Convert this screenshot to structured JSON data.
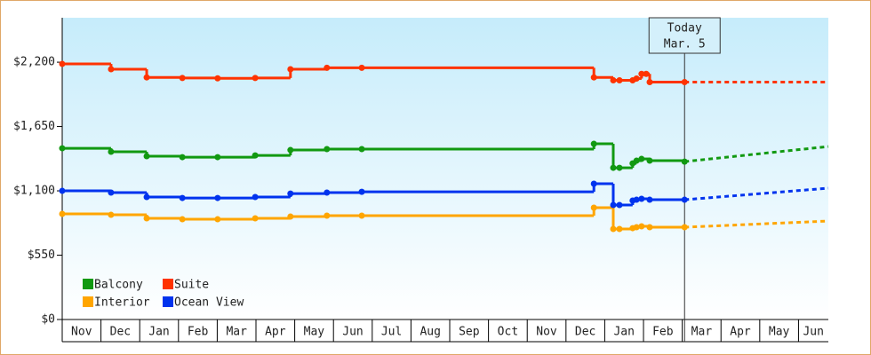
{
  "chart_data": {
    "type": "line",
    "categories": [
      "Nov",
      "Dec",
      "Jan",
      "Feb",
      "Mar",
      "Apr",
      "May",
      "Jun",
      "Jul",
      "Aug",
      "Sep",
      "Oct",
      "Nov",
      "Dec",
      "Jan",
      "Feb",
      "Mar",
      "Apr",
      "May",
      "Jun"
    ],
    "xlim": [
      0,
      19.77
    ],
    "ylim": [
      0,
      2580
    ],
    "yticks": [
      {
        "value": 0,
        "label": "$0"
      },
      {
        "value": 550,
        "label": "$550"
      },
      {
        "value": 1100,
        "label": "$1,100"
      },
      {
        "value": 1650,
        "label": "$1,650"
      },
      {
        "value": 2200,
        "label": "$2,200"
      }
    ],
    "today": {
      "x": 16.06,
      "label": [
        "Today",
        "Mar. 5"
      ]
    },
    "legend": "lower-left",
    "series": [
      {
        "name": "Balcony",
        "color": "#119911",
        "x": [
          0,
          1.26,
          2.18,
          3.1,
          4.01,
          4.98,
          5.89,
          6.83,
          7.73,
          13.72,
          14.22,
          14.38,
          14.72,
          14.82,
          14.95,
          15.16,
          16.06
        ],
        "values": [
          1464,
          1434,
          1396,
          1388,
          1388,
          1403,
          1449,
          1457,
          1457,
          1502,
          1297,
          1297,
          1335,
          1358,
          1373,
          1358,
          1350
        ],
        "forecast": {
          "x": [
            16.06,
            19.77
          ],
          "values": [
            1350,
            1479
          ]
        }
      },
      {
        "name": "Suite",
        "color": "#ff3300",
        "x": [
          0,
          1.26,
          2.18,
          3.1,
          4.01,
          4.98,
          5.89,
          6.83,
          7.73,
          13.72,
          14.22,
          14.38,
          14.72,
          14.82,
          14.95,
          15.07,
          15.16,
          16.06
        ],
        "values": [
          2185,
          2140,
          2070,
          2065,
          2062,
          2065,
          2140,
          2152,
          2152,
          2070,
          2045,
          2045,
          2045,
          2060,
          2100,
          2100,
          2030,
          2030
        ],
        "forecast": {
          "x": [
            16.06,
            19.77
          ],
          "values": [
            2030,
            2030
          ]
        }
      },
      {
        "name": "Interior",
        "color": "#ffa500",
        "x": [
          0,
          1.26,
          2.18,
          3.1,
          4.01,
          4.98,
          5.89,
          6.83,
          7.73,
          13.72,
          14.22,
          14.38,
          14.72,
          14.82,
          14.95,
          15.16,
          16.06
        ],
        "values": [
          903,
          895,
          865,
          857,
          857,
          865,
          880,
          888,
          888,
          956,
          774,
          774,
          781,
          789,
          797,
          789,
          789
        ],
        "forecast": {
          "x": [
            16.06,
            19.77
          ],
          "values": [
            789,
            842
          ]
        }
      },
      {
        "name": "Ocean View",
        "color": "#0033ee",
        "x": [
          0,
          1.26,
          2.18,
          3.1,
          4.01,
          4.98,
          5.89,
          6.83,
          7.73,
          13.72,
          14.22,
          14.38,
          14.72,
          14.82,
          14.95,
          15.16,
          16.06
        ],
        "values": [
          1100,
          1085,
          1047,
          1039,
          1039,
          1047,
          1077,
          1085,
          1092,
          1161,
          979,
          979,
          1017,
          1024,
          1032,
          1024,
          1024
        ],
        "forecast": {
          "x": [
            16.06,
            19.77
          ],
          "values": [
            1024,
            1123
          ]
        }
      }
    ]
  }
}
